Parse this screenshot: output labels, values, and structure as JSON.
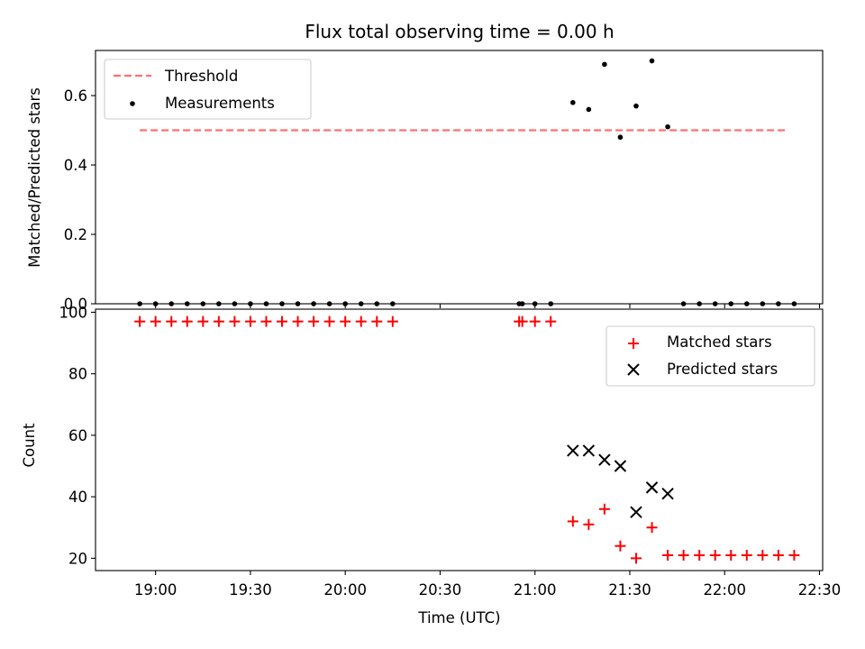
{
  "chart_data": [
    {
      "type": "scatter",
      "title": "Flux total observing time = 0.00 h",
      "ylabel": "Matched/Predicted stars",
      "xlabel": "",
      "ylim": [
        0,
        0.73
      ],
      "yticks": [
        0.0,
        0.2,
        0.4,
        0.6
      ],
      "ytick_labels": [
        "0.0",
        "0.2",
        "0.4",
        "0.6"
      ],
      "grid": false,
      "legend": {
        "placement": "top-left",
        "entries": [
          "Threshold",
          "Measurements"
        ]
      },
      "series": [
        {
          "name": "Threshold",
          "kind": "dashed-line",
          "color": "#ff7070",
          "x": [
            "18:55",
            "22:20"
          ],
          "y": [
            0.5,
            0.5
          ]
        },
        {
          "name": "Measurements",
          "kind": "dots",
          "color": "#000000",
          "x": [
            "18:55",
            "19:00",
            "19:05",
            "19:10",
            "19:15",
            "19:20",
            "19:25",
            "19:30",
            "19:35",
            "19:40",
            "19:45",
            "19:50",
            "19:55",
            "20:00",
            "20:05",
            "20:10",
            "20:15",
            "20:55",
            "20:56",
            "21:00",
            "21:05",
            "21:12",
            "21:17",
            "21:22",
            "21:27",
            "21:32",
            "21:37",
            "21:42",
            "21:47",
            "21:52",
            "21:57",
            "22:02",
            "22:07",
            "22:12",
            "22:17",
            "22:22"
          ],
          "y": [
            0,
            0,
            0,
            0,
            0,
            0,
            0,
            0,
            0,
            0,
            0,
            0,
            0,
            0,
            0,
            0,
            0,
            0,
            0,
            0,
            0,
            0.58,
            0.56,
            0.69,
            0.48,
            0.57,
            0.7,
            0.51,
            0,
            0,
            0,
            0,
            0,
            0,
            0,
            0
          ]
        }
      ]
    },
    {
      "type": "scatter",
      "title": "",
      "xlabel": "Time (UTC)",
      "ylabel": "Count",
      "ylim": [
        16,
        101
      ],
      "yticks": [
        20,
        40,
        60,
        80,
        100
      ],
      "ytick_labels": [
        "20",
        "40",
        "60",
        "80",
        "100"
      ],
      "x_range": [
        "18:41",
        "22:31"
      ],
      "xticks": [
        "19:00",
        "19:30",
        "20:00",
        "20:30",
        "21:00",
        "21:30",
        "22:00",
        "22:30"
      ],
      "grid": false,
      "legend": {
        "placement": "top-right",
        "entries": [
          "Matched stars",
          "Predicted stars"
        ]
      },
      "series": [
        {
          "name": "Matched stars",
          "marker": "plus",
          "color": "#ff0000",
          "x": [
            "18:55",
            "19:00",
            "19:05",
            "19:10",
            "19:15",
            "19:20",
            "19:25",
            "19:30",
            "19:35",
            "19:40",
            "19:45",
            "19:50",
            "19:55",
            "20:00",
            "20:05",
            "20:10",
            "20:15",
            "20:55",
            "20:56",
            "21:00",
            "21:05",
            "21:12",
            "21:17",
            "21:22",
            "21:27",
            "21:32",
            "21:37",
            "21:42",
            "21:47",
            "21:52",
            "21:57",
            "22:02",
            "22:07",
            "22:12",
            "22:17",
            "22:22"
          ],
          "y": [
            97,
            97,
            97,
            97,
            97,
            97,
            97,
            97,
            97,
            97,
            97,
            97,
            97,
            97,
            97,
            97,
            97,
            97,
            97,
            97,
            97,
            32,
            31,
            36,
            24,
            20,
            30,
            21,
            21,
            21,
            21,
            21,
            21,
            21,
            21,
            21
          ]
        },
        {
          "name": "Predicted stars",
          "marker": "x",
          "color": "#000000",
          "x": [
            "21:12",
            "21:17",
            "21:22",
            "21:27",
            "21:32",
            "21:37",
            "21:42"
          ],
          "y": [
            55,
            55,
            52,
            50,
            35,
            43,
            41
          ]
        }
      ]
    }
  ]
}
